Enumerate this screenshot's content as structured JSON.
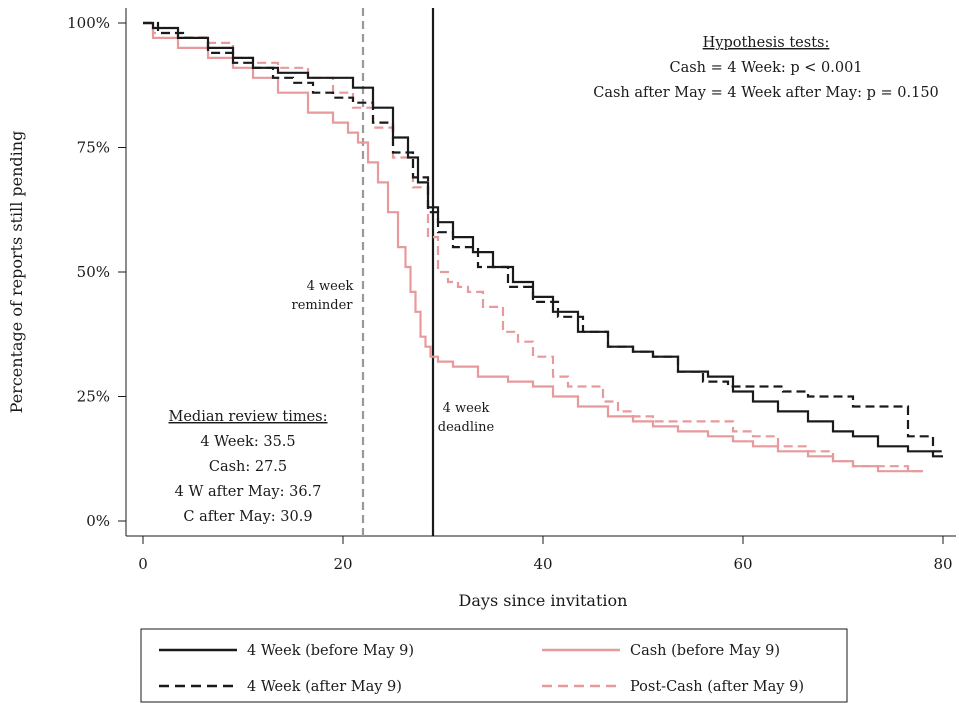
{
  "chart_data": {
    "type": "line",
    "title": "",
    "xlabel": "Days since invitation",
    "ylabel": "Percentage of reports still pending",
    "xlim": [
      0,
      80
    ],
    "ylim": [
      0,
      100
    ],
    "xticks": [
      0,
      20,
      40,
      60,
      80
    ],
    "xtick_labels": [
      "0",
      "20",
      "40",
      "60",
      "80"
    ],
    "yticks": [
      0,
      25,
      50,
      75,
      100
    ],
    "ytick_labels": [
      "0%",
      "25%",
      "50%",
      "75%",
      "100%"
    ],
    "grid": false,
    "legend_position": "bottom",
    "reference_lines": [
      {
        "x": 22,
        "label_lines": [
          "4 week",
          "reminder"
        ],
        "color": "#999999",
        "style": "dashed"
      },
      {
        "x": 29,
        "label_lines": [
          "4 week",
          "deadline"
        ],
        "color": "#1a1a1a",
        "style": "solid"
      }
    ],
    "hypothesis_tests": {
      "heading": "Hypothesis tests:",
      "line1": "Cash = 4 Week: p < 0.001",
      "line2": "Cash after May = 4 Week after May:  p = 0.150"
    },
    "median_review_times": {
      "heading": "Median review times:",
      "lines": [
        "4 Week: 35.5",
        "Cash: 27.5",
        "4 W after May: 36.7",
        "C after May: 30.9"
      ]
    },
    "series": [
      {
        "name": "4 Week (before May 9)",
        "color": "#1a1a1a",
        "dash": "solid",
        "x": [
          0,
          2,
          5,
          8,
          10,
          12,
          15,
          18,
          20,
          22,
          24,
          26,
          27,
          28,
          29,
          30,
          32,
          34,
          36,
          38,
          40,
          42,
          45,
          48,
          50,
          52,
          55,
          58,
          60,
          62,
          65,
          68,
          70,
          72,
          75,
          78,
          80
        ],
        "y": [
          100,
          99,
          97,
          95,
          93,
          91,
          90,
          89,
          89,
          87,
          83,
          77,
          73,
          68,
          63,
          60,
          57,
          54,
          51,
          48,
          45,
          42,
          38,
          35,
          34,
          33,
          30,
          29,
          26,
          24,
          22,
          20,
          18,
          17,
          15,
          14,
          13
        ]
      },
      {
        "name": "4 Week (after May 9)",
        "color": "#1a1a1a",
        "dash": "dashed",
        "x": [
          0,
          3,
          5,
          8,
          10,
          12,
          14,
          16,
          18,
          20,
          22,
          24,
          26,
          28,
          29,
          30,
          32,
          35,
          38,
          40,
          43,
          45,
          48,
          50,
          52,
          55,
          57,
          60,
          63,
          65,
          68,
          70,
          72,
          75,
          78,
          80
        ],
        "y": [
          100,
          98,
          97,
          94,
          92,
          91,
          89,
          88,
          86,
          85,
          84,
          80,
          74,
          69,
          62,
          58,
          55,
          51,
          47,
          44,
          41,
          38,
          35,
          34,
          33,
          30,
          28,
          27,
          27,
          26,
          25,
          25,
          23,
          23,
          17,
          14
        ]
      },
      {
        "name": "Cash (before May 9)",
        "color": "#e8999c",
        "dash": "solid",
        "x": [
          0,
          2,
          5,
          8,
          10,
          12,
          15,
          18,
          20,
          21,
          22,
          23,
          24,
          25,
          26,
          26.5,
          27,
          27.5,
          28,
          28.5,
          29,
          30,
          32,
          35,
          38,
          40,
          42,
          45,
          48,
          50,
          52,
          55,
          58,
          60,
          62,
          65,
          68,
          70,
          72,
          75,
          78
        ],
        "y": [
          100,
          97,
          95,
          93,
          91,
          89,
          86,
          82,
          80,
          78,
          76,
          72,
          68,
          62,
          55,
          51,
          46,
          42,
          37,
          35,
          33,
          32,
          31,
          29,
          28,
          27,
          25,
          23,
          21,
          20,
          19,
          18,
          17,
          16,
          15,
          14,
          13,
          12,
          11,
          10,
          10
        ]
      },
      {
        "name": "Post-Cash (after May 9)",
        "color": "#e8999c",
        "dash": "dashed",
        "x": [
          0,
          2,
          5,
          8,
          10,
          12,
          15,
          18,
          20,
          22,
          24,
          26,
          28,
          29,
          30,
          31,
          32,
          33,
          35,
          37,
          38,
          40,
          42,
          43,
          45,
          47,
          48,
          50,
          52,
          55,
          58,
          60,
          62,
          65,
          68,
          70,
          72,
          75,
          78
        ],
        "y": [
          100,
          98,
          97,
          96,
          93,
          92,
          91,
          89,
          86,
          83,
          79,
          73,
          67,
          57,
          50,
          48,
          47,
          46,
          43,
          38,
          36,
          33,
          29,
          27,
          27,
          24,
          22,
          21,
          20,
          20,
          20,
          18,
          17,
          15,
          14,
          12,
          11,
          11,
          10
        ]
      }
    ]
  }
}
